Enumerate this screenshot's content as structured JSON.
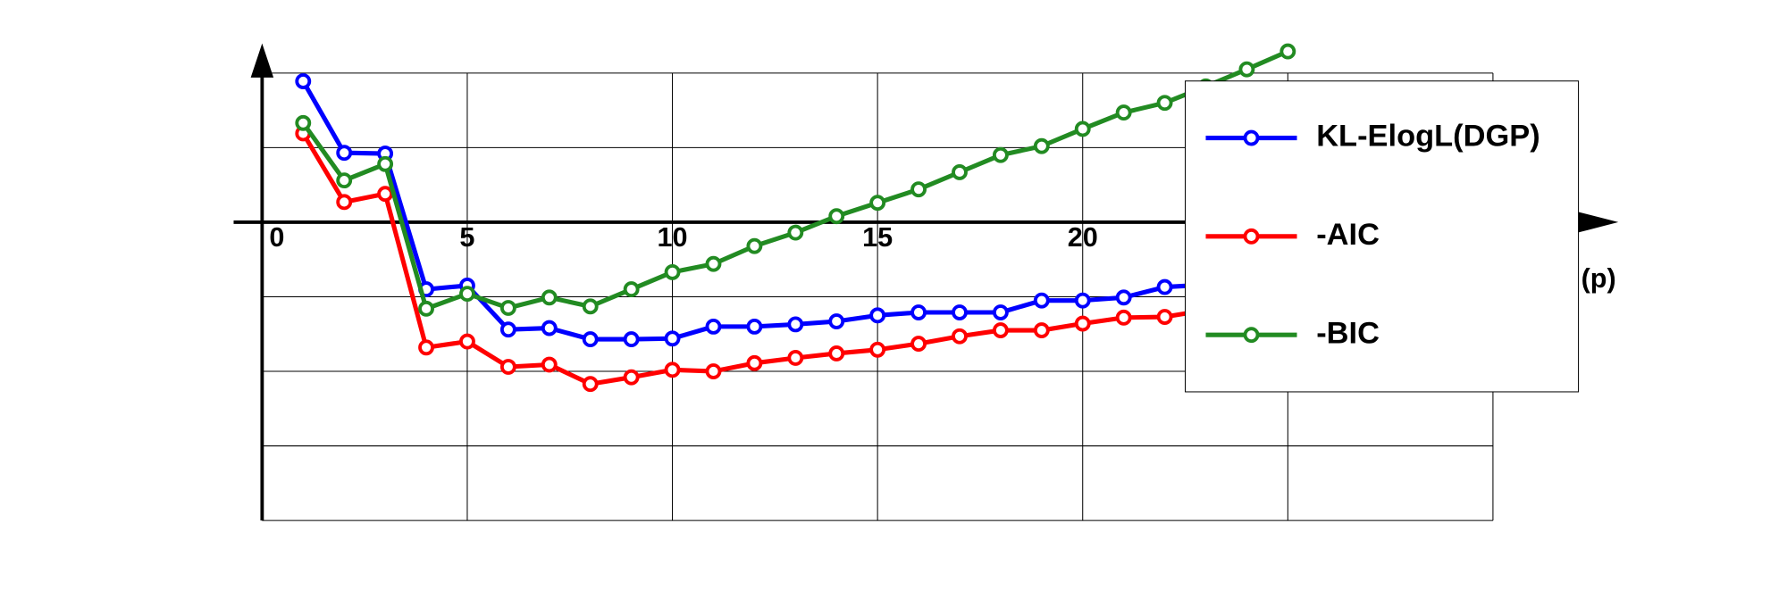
{
  "chart_data": {
    "type": "line",
    "x": [
      1,
      2,
      3,
      4,
      5,
      6,
      7,
      8,
      9,
      10,
      11,
      12,
      13,
      14,
      15,
      16,
      17,
      18,
      19,
      20,
      21,
      22,
      23,
      24,
      25
    ],
    "xlabel": "(p)",
    "series": [
      {
        "name": "KL-ElogL(DGP)",
        "color": "#0000ff",
        "values": [
          1.89,
          0.93,
          0.92,
          -0.9,
          -0.85,
          -1.44,
          -1.42,
          -1.57,
          -1.57,
          -1.56,
          -1.4,
          -1.4,
          -1.37,
          -1.33,
          -1.25,
          -1.21,
          -1.21,
          -1.21,
          -1.05,
          -1.05,
          -1.01,
          -0.87,
          -0.84,
          -0.79,
          -0.75
        ]
      },
      {
        "name": "-AIC",
        "color": "#ff0000",
        "values": [
          1.19,
          0.27,
          0.38,
          -1.68,
          -1.6,
          -1.94,
          -1.91,
          -2.17,
          -2.08,
          -1.98,
          -2.0,
          -1.89,
          -1.82,
          -1.76,
          -1.71,
          -1.63,
          -1.53,
          -1.45,
          -1.45,
          -1.36,
          -1.28,
          -1.27,
          -1.18,
          -1.11,
          -1.05
        ]
      },
      {
        "name": "-BIC",
        "color": "#228b22",
        "values": [
          1.33,
          0.56,
          0.78,
          -1.16,
          -0.96,
          -1.15,
          -1.01,
          -1.13,
          -0.9,
          -0.67,
          -0.56,
          -0.32,
          -0.14,
          0.08,
          0.26,
          0.44,
          0.67,
          0.9,
          1.02,
          1.25,
          1.47,
          1.6,
          1.82,
          2.05,
          2.29
        ]
      }
    ],
    "xlim": [
      0,
      30
    ],
    "xticks": [
      0,
      5,
      10,
      15,
      20,
      25,
      30
    ],
    "ylim": [
      -4,
      2
    ],
    "yticks": [
      -4,
      -3,
      -2,
      -1,
      0,
      1,
      2
    ],
    "grid": true
  }
}
